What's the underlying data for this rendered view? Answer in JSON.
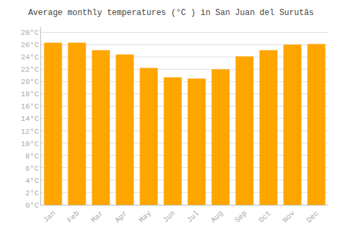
{
  "chart_data": {
    "type": "bar",
    "title": "Average monthly temperatures (°C ) in San Juan del Surutãs",
    "categories": [
      "Jan",
      "Feb",
      "Mar",
      "Apr",
      "May",
      "Jun",
      "Jul",
      "Aug",
      "Sep",
      "Oct",
      "Nov",
      "Dec"
    ],
    "values": [
      26.3,
      26.3,
      25.1,
      24.4,
      22.2,
      20.7,
      20.5,
      22.0,
      24.1,
      25.1,
      26.0,
      26.1
    ],
    "color": "#FFA500",
    "ylim": [
      0,
      28.8
    ],
    "yticks": [
      {
        "value": 0,
        "label": "0°C"
      },
      {
        "value": 2,
        "label": "2°C"
      },
      {
        "value": 4,
        "label": "4°C"
      },
      {
        "value": 6,
        "label": "6°C"
      },
      {
        "value": 8,
        "label": "8°C"
      },
      {
        "value": 10,
        "label": "10°C"
      },
      {
        "value": 12,
        "label": "12°C"
      },
      {
        "value": 14,
        "label": "14°C"
      },
      {
        "value": 16,
        "label": "16°C"
      },
      {
        "value": 18,
        "label": "18°C"
      },
      {
        "value": 20,
        "label": "20°C"
      },
      {
        "value": 22,
        "label": "22°C"
      },
      {
        "value": 24,
        "label": "24°C"
      },
      {
        "value": 26,
        "label": "26°C"
      },
      {
        "value": 28,
        "label": "28°C"
      }
    ],
    "grid": true
  }
}
